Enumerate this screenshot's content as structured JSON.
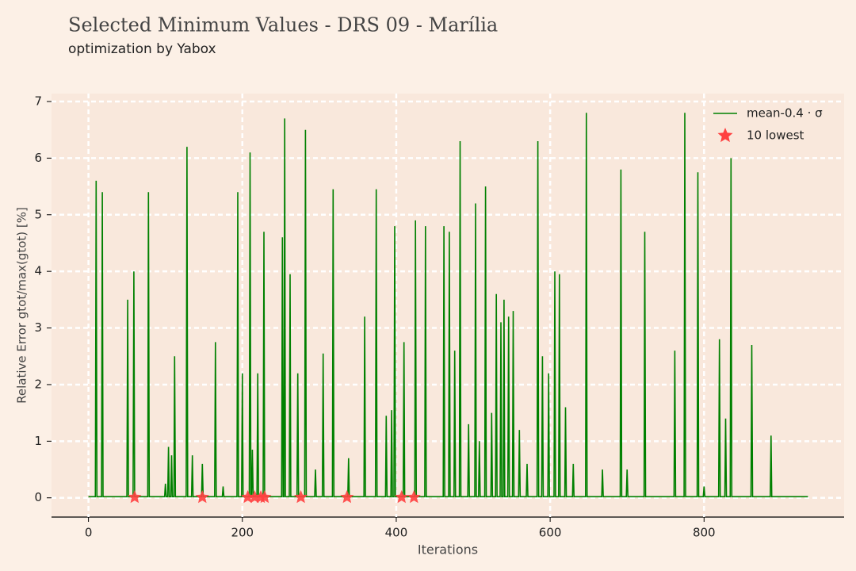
{
  "chart_data": {
    "type": "line",
    "title": "Selected Minimum Values - DRS 09 - Marília",
    "subtitle": "optimization by Yabox",
    "x_label": "Iterations",
    "y_label": "Relative Error gtot/max(gtot) [%]",
    "xlim": [
      -48,
      982
    ],
    "ylim": [
      -0.34,
      7.14
    ],
    "xticks": [
      0,
      200,
      400,
      600,
      800
    ],
    "yticks": [
      0,
      1,
      2,
      3,
      4,
      5,
      6,
      7
    ],
    "grid": true,
    "legend": "upper right",
    "series": [
      {
        "name": "mean-0.4 · σ",
        "type": "line",
        "color": "#008000",
        "x": [
          0,
          9,
          10,
          11,
          17,
          18,
          19,
          50,
          51,
          52,
          58,
          59,
          60,
          77,
          78,
          79,
          99,
          100,
          101,
          103,
          104,
          105,
          107,
          108,
          109,
          111,
          112,
          113,
          127,
          128,
          129,
          134,
          135,
          136,
          147,
          148,
          149,
          164,
          165,
          166,
          174,
          175,
          176,
          193,
          194,
          195,
          199,
          200,
          201,
          209,
          210,
          211,
          212,
          213,
          214,
          219,
          220,
          221,
          227,
          228,
          229,
          251,
          252,
          253,
          254,
          255,
          256,
          261,
          262,
          263,
          271,
          272,
          273,
          281,
          282,
          283,
          294,
          295,
          296,
          304,
          305,
          306,
          317,
          318,
          319,
          337,
          338,
          339,
          358,
          359,
          360,
          373,
          374,
          375,
          386,
          387,
          388,
          393,
          394,
          395,
          397,
          398,
          399,
          409,
          410,
          411,
          424,
          425,
          426,
          437,
          438,
          439,
          461,
          462,
          463,
          468,
          469,
          470,
          475,
          476,
          477,
          482,
          483,
          484,
          493,
          494,
          495,
          502,
          503,
          504,
          507,
          508,
          509,
          515,
          516,
          517,
          523,
          524,
          525,
          529,
          530,
          531,
          535,
          536,
          537,
          539,
          540,
          541,
          545,
          546,
          547,
          551,
          552,
          553,
          559,
          560,
          561,
          569,
          570,
          571,
          583,
          584,
          585,
          589,
          590,
          591,
          597,
          598,
          599,
          605,
          606,
          607,
          611,
          612,
          613,
          619,
          620,
          621,
          629,
          630,
          631,
          646,
          647,
          648,
          667,
          668,
          669,
          691,
          692,
          693,
          699,
          700,
          701,
          722,
          723,
          724,
          761,
          762,
          763,
          774,
          775,
          776,
          791,
          792,
          793,
          799,
          800,
          801,
          819,
          820,
          821,
          827,
          828,
          829,
          834,
          835,
          836,
          861,
          862,
          863,
          886,
          887,
          888,
          935
        ],
        "values": [
          0.02,
          0.02,
          5.6,
          0.02,
          0.02,
          5.4,
          0.02,
          0.02,
          3.5,
          0.02,
          0.02,
          4.0,
          0.02,
          0.02,
          5.4,
          0.02,
          0.02,
          0.25,
          0.02,
          0.02,
          0.9,
          0.02,
          0.02,
          0.75,
          0.02,
          0.02,
          2.5,
          0.02,
          0.02,
          6.2,
          0.02,
          0.02,
          0.75,
          0.02,
          0.02,
          0.6,
          0.02,
          0.02,
          2.75,
          0.02,
          0.02,
          0.2,
          0.02,
          0.02,
          5.4,
          0.02,
          0.02,
          2.2,
          0.02,
          0.02,
          6.1,
          0.02,
          0.02,
          0.85,
          0.02,
          0.02,
          2.2,
          0.02,
          0.02,
          4.7,
          0.02,
          0.02,
          4.6,
          0.02,
          0.02,
          6.7,
          0.02,
          0.02,
          3.95,
          0.02,
          0.02,
          2.2,
          0.02,
          0.02,
          6.5,
          0.02,
          0.02,
          0.5,
          0.02,
          0.02,
          2.55,
          0.02,
          0.02,
          5.45,
          0.02,
          0.02,
          0.7,
          0.02,
          0.02,
          3.2,
          0.02,
          0.02,
          5.45,
          0.02,
          0.02,
          1.45,
          0.02,
          0.02,
          1.55,
          0.02,
          0.02,
          4.8,
          0.02,
          0.02,
          2.75,
          0.02,
          0.02,
          4.9,
          0.02,
          0.02,
          4.8,
          0.02,
          0.02,
          4.8,
          0.02,
          0.02,
          4.7,
          0.02,
          0.02,
          2.6,
          0.02,
          0.02,
          6.3,
          0.02,
          0.02,
          1.3,
          0.02,
          0.02,
          5.2,
          0.02,
          0.02,
          1.0,
          0.02,
          0.02,
          5.5,
          0.02,
          0.02,
          1.5,
          0.02,
          0.02,
          3.6,
          0.02,
          0.02,
          3.1,
          0.02,
          0.02,
          3.5,
          0.02,
          0.02,
          3.2,
          0.02,
          0.02,
          3.3,
          0.02,
          0.02,
          1.2,
          0.02,
          0.02,
          0.6,
          0.02,
          0.02,
          6.3,
          0.02,
          0.02,
          2.5,
          0.02,
          0.02,
          2.2,
          0.02,
          0.02,
          4.0,
          0.02,
          0.02,
          3.95,
          0.02,
          0.02,
          1.6,
          0.02,
          0.02,
          0.6,
          0.02,
          0.02,
          6.8,
          0.02,
          0.02,
          0.5,
          0.02,
          0.02,
          5.8,
          0.02,
          0.02,
          0.5,
          0.02,
          0.02,
          4.7,
          0.02,
          0.02,
          2.6,
          0.02,
          0.02,
          6.8,
          0.02,
          0.02,
          5.75,
          0.02,
          0.02,
          0.2,
          0.02,
          0.02,
          2.8,
          0.02,
          0.02,
          1.4,
          0.02,
          0.02,
          6.0,
          0.02,
          0.02,
          2.7,
          0.02,
          0.02,
          1.1,
          0.02,
          0.02
        ]
      },
      {
        "name": "10 lowest",
        "type": "scatter",
        "color": "#ff4040",
        "x": [
          60,
          148,
          207,
          216,
          224,
          229,
          276,
          336,
          407,
          423
        ],
        "values": [
          0.01,
          0.01,
          0.01,
          0.01,
          0.01,
          0.01,
          0.01,
          0.01,
          0.01,
          0.01
        ]
      }
    ]
  }
}
